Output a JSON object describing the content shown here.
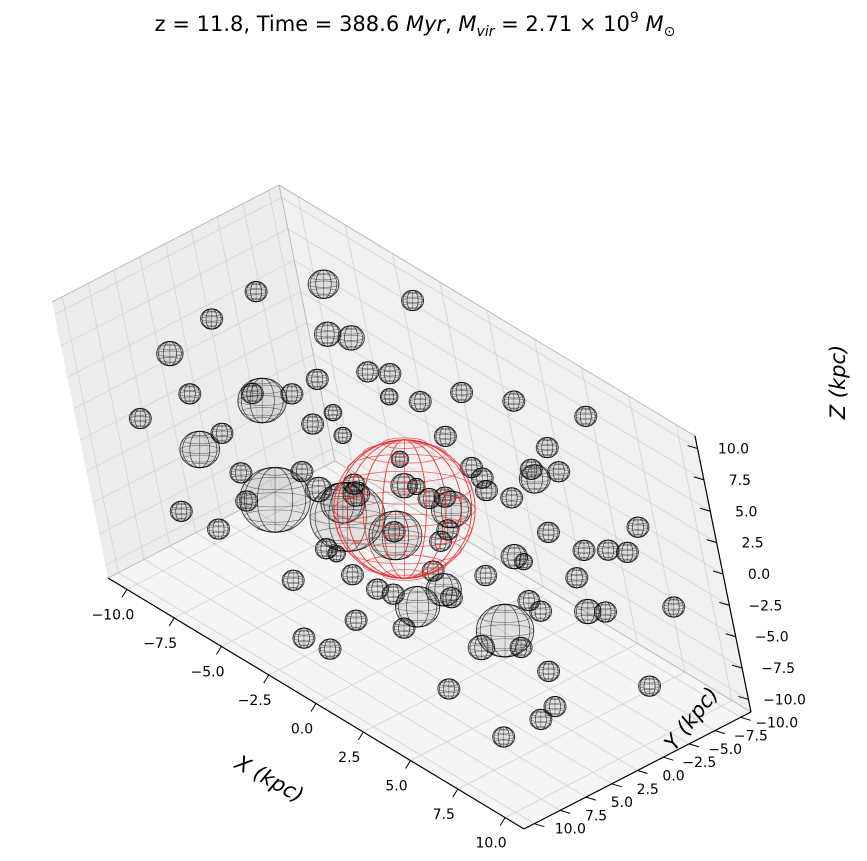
{
  "chart_data": {
    "type": "scatter",
    "title": {
      "prefix": "z = 11.8,  Time = 388.6 ",
      "time_unit": "Myr",
      "mvir_label": "M",
      "mvir_sub": "vir",
      "mvir_value": " = 2.71 × 10",
      "mvir_exp": "9",
      "mvir_unit": "M",
      "mvir_unit_sub": "⊙"
    },
    "xlabel": "X (kpc)",
    "ylabel": "Y (kpc)",
    "zlabel": "Z (kpc)",
    "xlim": [
      -11,
      11
    ],
    "ylim": [
      -11,
      11
    ],
    "zlim": [
      -11,
      11
    ],
    "xticks": [
      "−10.0",
      "−7.5",
      "−5.0",
      "−2.5",
      "0.0",
      "2.5",
      "5.0",
      "7.5",
      "10.0"
    ],
    "yticks": [
      "−10.0",
      "−7.5",
      "−5.0",
      "−2.5",
      "0.0",
      "2.5",
      "5.0",
      "7.5",
      "10.0"
    ],
    "zticks": [
      "−10.0",
      "−7.5",
      "−5.0",
      "−2.5",
      "0.0",
      "2.5",
      "5.0",
      "7.5",
      "10.0"
    ],
    "grid": true,
    "colors": {
      "halo": "#000000",
      "main_halo": "#e8292b",
      "pane": "#f2f2f2",
      "grid": "#d5d5d5"
    },
    "main_halo": {
      "x": 0.5,
      "y": 0.5,
      "z": 0.5,
      "r": 3.2
    },
    "series": [
      {
        "marker": "wireframe-sphere",
        "points": [
          [
            -9.6,
            2.7,
            -3.0,
            0.9
          ],
          [
            -8.5,
            -9.5,
            6.0,
            0.7
          ],
          [
            -7.0,
            7.4,
            9.0,
            0.6
          ],
          [
            -6.6,
            -8.2,
            4.0,
            0.6
          ],
          [
            -6.2,
            1.3,
            3.4,
            1.1
          ],
          [
            -5.6,
            -1.2,
            -4.2,
            0.6
          ],
          [
            -5.0,
            6.2,
            0.8,
            0.5
          ],
          [
            -4.7,
            -5.8,
            -9.0,
            1.2
          ],
          [
            -4.4,
            -3.0,
            8.5,
            0.6
          ],
          [
            -3.6,
            9.2,
            6.5,
            0.5
          ],
          [
            -3.0,
            0.7,
            -2.1,
            1.0
          ],
          [
            -2.6,
            -8.1,
            -6.0,
            0.9
          ],
          [
            -2.4,
            7.4,
            -9.5,
            0.5
          ],
          [
            -2.1,
            -2.5,
            7.8,
            0.5
          ],
          [
            -1.6,
            4.2,
            -3.4,
            0.4
          ],
          [
            -1.2,
            -5.4,
            -5.2,
            0.5
          ],
          [
            -0.8,
            9.8,
            4.0,
            1.6
          ],
          [
            -0.4,
            -4.1,
            6.3,
            0.5
          ],
          [
            0.2,
            5.2,
            1.6,
            1.7
          ],
          [
            0.6,
            -1.7,
            0.5,
            0.5
          ],
          [
            1.1,
            7.6,
            -4.8,
            0.5
          ],
          [
            1.6,
            -7.5,
            -1.0,
            0.5
          ],
          [
            2.2,
            2.6,
            4.8,
            0.6
          ],
          [
            2.6,
            -3.1,
            -8.8,
            1.3
          ],
          [
            3.0,
            8.1,
            7.2,
            0.6
          ],
          [
            3.3,
            -0.3,
            8.5,
            0.5
          ],
          [
            3.6,
            5.6,
            -2.3,
            1.0
          ],
          [
            4.0,
            -8.6,
            2.8,
            0.5
          ],
          [
            4.4,
            1.9,
            -6.4,
            0.6
          ],
          [
            4.8,
            -5.2,
            4.4,
            0.7
          ],
          [
            5.2,
            9.5,
            -0.9,
            0.5
          ],
          [
            5.5,
            -1.5,
            -3.1,
            0.5
          ],
          [
            5.9,
            4.6,
            8.1,
            0.5
          ],
          [
            6.2,
            -7.0,
            -5.7,
            0.5
          ],
          [
            6.6,
            0.6,
            2.3,
            0.6
          ],
          [
            6.9,
            -3.8,
            9.4,
            0.5
          ],
          [
            7.3,
            8.4,
            3.6,
            0.8
          ],
          [
            7.6,
            -6.3,
            0.8,
            0.5
          ],
          [
            8.0,
            3.2,
            -8.3,
            0.5
          ],
          [
            8.3,
            -2.4,
            -1.8,
            0.6
          ],
          [
            8.7,
            6.5,
            5.2,
            0.5
          ],
          [
            9.0,
            -9.0,
            -3.6,
            0.5
          ],
          [
            9.3,
            1.1,
            6.9,
            0.5
          ],
          [
            9.6,
            -4.6,
            -7.5,
            0.5
          ],
          [
            -9.0,
            -5.5,
            -1.5,
            0.5
          ],
          [
            -8.0,
            4.8,
            -7.0,
            0.5
          ],
          [
            -7.5,
            -2.0,
            9.5,
            0.5
          ],
          [
            -6.8,
            9.5,
            -2.5,
            0.5
          ],
          [
            -5.8,
            -9.8,
            1.2,
            0.5
          ],
          [
            -5.2,
            3.5,
            5.8,
            0.5
          ],
          [
            -4.2,
            -7.0,
            2.0,
            0.4
          ],
          [
            -3.3,
            6.0,
            -6.3,
            0.5
          ],
          [
            -2.8,
            -0.5,
            -9.3,
            0.5
          ],
          [
            -1.8,
            2.5,
            9.6,
            0.5
          ],
          [
            -1.0,
            -9.2,
            -3.5,
            0.5
          ],
          [
            0.0,
            8.8,
            -7.6,
            0.5
          ],
          [
            0.9,
            -6.0,
            7.4,
            0.5
          ],
          [
            1.9,
            0.0,
            -5.5,
            0.5
          ],
          [
            2.9,
            -9.9,
            -7.2,
            0.5
          ],
          [
            3.8,
            3.9,
            0.0,
            0.5
          ],
          [
            4.6,
            -0.9,
            6.1,
            0.5
          ],
          [
            5.3,
            6.8,
            -6.8,
            0.5
          ],
          [
            6.1,
            -8.9,
            9.0,
            0.5
          ],
          [
            7.0,
            2.2,
            -3.9,
            0.5
          ],
          [
            7.8,
            -0.7,
            9.8,
            0.5
          ],
          [
            8.6,
            9.7,
            9.2,
            0.5
          ],
          [
            9.4,
            -6.7,
            4.1,
            0.5
          ],
          [
            9.9,
            4.5,
            -5.0,
            0.5
          ],
          [
            -9.3,
            7.8,
            1.9,
            0.5
          ],
          [
            -8.8,
            0.5,
            7.2,
            0.5
          ],
          [
            -7.8,
            -7.6,
            -8.5,
            0.5
          ],
          [
            -7.2,
            3.0,
            -4.8,
            0.5
          ],
          [
            -6.0,
            -4.4,
            0.2,
            0.4
          ],
          [
            -5.4,
            8.7,
            7.8,
            0.5
          ],
          [
            -4.9,
            0.2,
            -7.7,
            0.5
          ],
          [
            -3.9,
            -1.8,
            1.4,
            0.4
          ],
          [
            -3.4,
            -9.6,
            9.3,
            0.5
          ],
          [
            -2.2,
            4.9,
            2.9,
            0.5
          ],
          [
            -1.4,
            -3.7,
            -1.2,
            0.4
          ],
          [
            -0.6,
            1.4,
            -6.9,
            0.5
          ],
          [
            0.4,
            6.9,
            9.9,
            0.5
          ],
          [
            1.4,
            -9.7,
            5.6,
            0.5
          ],
          [
            2.4,
            9.0,
            0.6,
            0.5
          ],
          [
            3.4,
            -4.8,
            -3.3,
            0.4
          ],
          [
            4.2,
            7.2,
            4.9,
            0.5
          ],
          [
            5.0,
            -2.7,
            -9.7,
            0.5
          ],
          [
            5.8,
            1.6,
            9.1,
            0.5
          ],
          [
            6.6,
            -9.4,
            -1.6,
            0.5
          ],
          [
            7.4,
            5.9,
            -9.1,
            0.5
          ],
          [
            8.2,
            -3.3,
            2.6,
            0.5
          ],
          [
            9.1,
            2.9,
            1.2,
            0.5
          ],
          [
            -0.2,
            -1.0,
            3.2,
            0.4
          ]
        ]
      }
    ]
  }
}
